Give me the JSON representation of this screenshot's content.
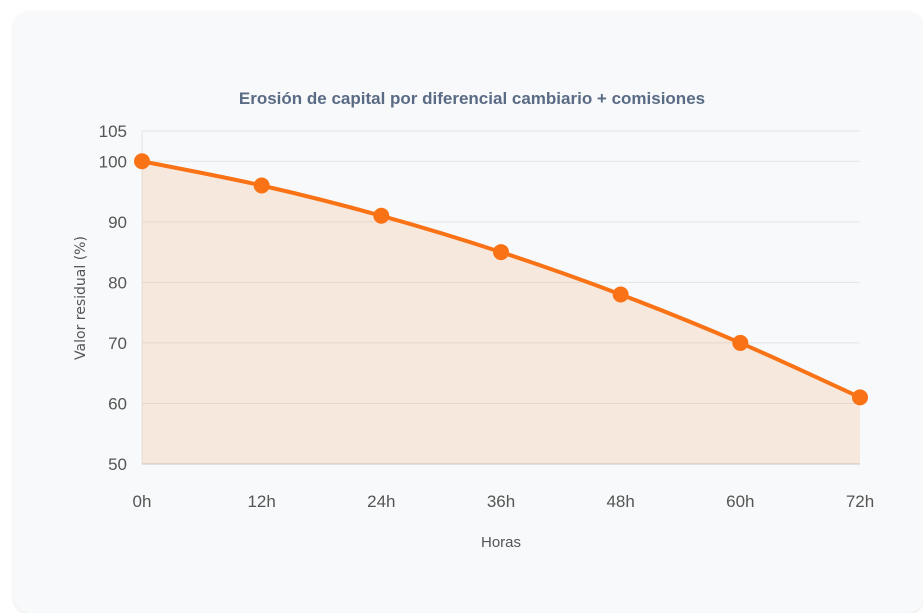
{
  "chart_data": {
    "type": "line",
    "title": "Erosión de capital por diferencial cambiario + comisiones",
    "xlabel": "Horas",
    "ylabel": "Valor residual (%)",
    "categories": [
      "0h",
      "12h",
      "24h",
      "36h",
      "48h",
      "60h",
      "72h"
    ],
    "series": [
      {
        "values": [
          100,
          96,
          91,
          85,
          78,
          70,
          61
        ],
        "color": "#f97316",
        "fill": "area"
      }
    ],
    "y_ticks": [
      "50",
      "60",
      "70",
      "80",
      "90",
      "100",
      "105"
    ],
    "ylim": [
      50,
      105
    ],
    "grid": true
  }
}
